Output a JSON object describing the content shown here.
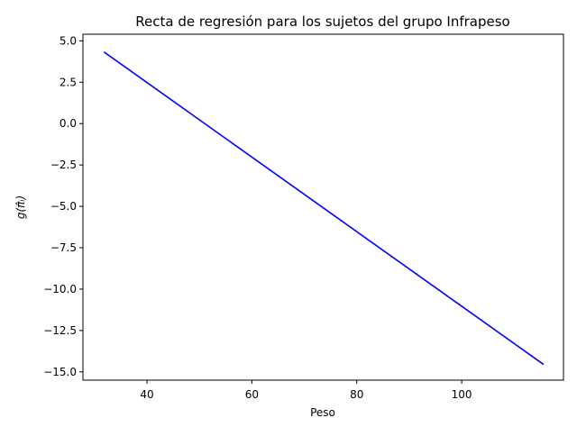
{
  "chart_data": {
    "type": "line",
    "title": "Recta de regresión para los sujetos del grupo Infrapeso",
    "xlabel": "Peso",
    "ylabel": "g(π̂ᵢ)",
    "xlim": [
      27.8,
      119.4
    ],
    "ylim": [
      -15.5,
      5.4
    ],
    "xticks": [
      40,
      60,
      80,
      100
    ],
    "yticks": [
      5.0,
      2.5,
      0.0,
      -2.5,
      -5.0,
      -7.5,
      -10.0,
      -12.5,
      -15.0
    ],
    "ytick_labels": [
      "5.0",
      "2.5",
      "0.0",
      "−2.5",
      "−5.0",
      "−7.5",
      "−10.0",
      "−12.5",
      "−15.0"
    ],
    "grid": false,
    "legend": "none",
    "series": [
      {
        "color": "#0000ff",
        "x": [
          31.8,
          115.6
        ],
        "y": [
          4.33,
          -14.55
        ]
      }
    ]
  }
}
